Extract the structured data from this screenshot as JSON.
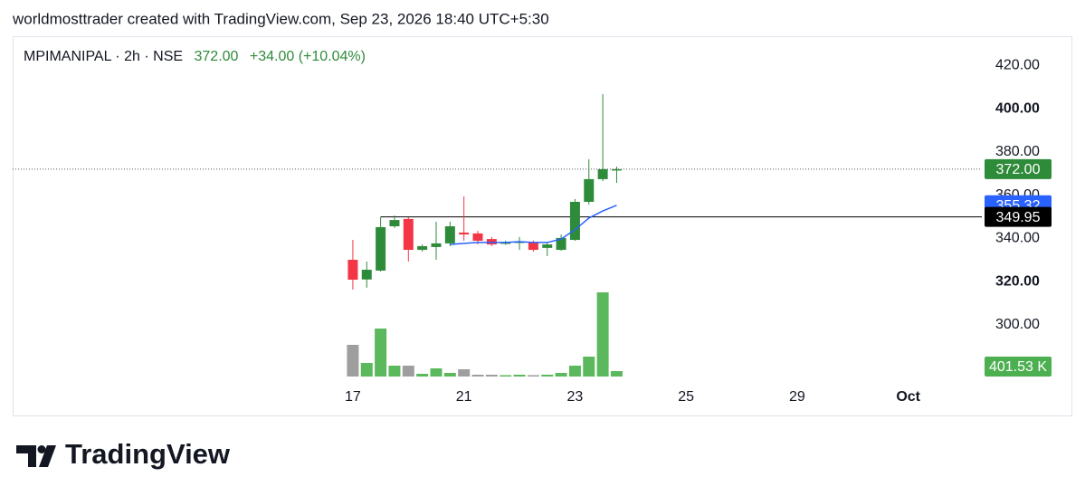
{
  "header": "worldmosttrader created with TradingView.com, Sep 23, 2026 18:40 UTC+5:30",
  "footer": "TradingView",
  "chart_data": {
    "type": "candlestick",
    "symbol": "MPIMANIPAL · 2h · NSE",
    "last_price": "372.00",
    "change": "+34.00 (+10.04%)",
    "up_color": "#2e8b3a",
    "down_color": "#f23645",
    "open": [
      330.1,
      321.0,
      325.1,
      345.6,
      349.0,
      334.7,
      336.0,
      337.7,
      342.7,
      342.3,
      339.7,
      337.7,
      338.0,
      338.1,
      335.6,
      334.7,
      339.3,
      356.9,
      367.4,
      372.0
    ],
    "high": [
      339.3,
      329.3,
      349.8,
      350.6,
      349.8,
      337.2,
      347.7,
      347.7,
      359.4,
      343.5,
      340.6,
      339.0,
      340.6,
      339.0,
      338.5,
      341.8,
      358.2,
      376.6,
      406.7,
      373.2
    ],
    "low": [
      316.3,
      317.2,
      324.7,
      344.8,
      329.3,
      333.9,
      330.1,
      336.4,
      338.9,
      337.2,
      336.4,
      337.0,
      334.7,
      333.9,
      331.8,
      334.3,
      338.9,
      355.6,
      366.5,
      365.7
    ],
    "close": [
      320.9,
      325.5,
      345.2,
      348.5,
      334.7,
      336.4,
      337.7,
      345.6,
      341.8,
      338.9,
      337.2,
      338.1,
      338.5,
      334.7,
      337.2,
      340.2,
      356.9,
      367.4,
      372.0,
      372.0
    ],
    "close_last_label": "372.00",
    "volume": {
      "up_color": "#5cb85c",
      "down_color": "#9e9e9e",
      "label_color": "#4caf50",
      "values": [
        2341500,
        1003500,
        3545700,
        802800,
        802800,
        200700,
        602100,
        267600,
        535200,
        133800,
        133800,
        100350,
        133800,
        100350,
        133800,
        267600,
        802800,
        1471800,
        6221700,
        401530
      ],
      "value_labels": [
        null,
        null,
        null,
        null,
        null,
        null,
        null,
        null,
        null,
        null,
        null,
        null,
        null,
        null,
        null,
        null,
        null,
        null,
        null,
        "401.53 K"
      ],
      "ylim": [
        0,
        25150000
      ]
    },
    "ma": {
      "color": "#2962ff",
      "values": [
        null,
        null,
        null,
        null,
        null,
        null,
        null,
        337.2,
        337.7,
        338.1,
        338.1,
        338.1,
        338.5,
        338.1,
        338.1,
        339.7,
        344.0,
        349.4,
        352.7,
        355.32
      ]
    },
    "hline": {
      "value": 349.95,
      "color": "#000000"
    },
    "xlim": [
      -24.5,
      45.3
    ],
    "xticks": [
      {
        "value": 0,
        "label": "17"
      },
      {
        "value": 8,
        "label": "21"
      },
      {
        "value": 16,
        "label": "23"
      },
      {
        "value": 24,
        "label": "25"
      },
      {
        "value": 32,
        "label": "29"
      },
      {
        "value": 40,
        "label": "Oct"
      }
    ],
    "ylim": [
      257.7,
      433.5
    ],
    "yticks": [
      {
        "value": 300,
        "label": "300.00"
      },
      {
        "value": 320,
        "label": "320.00"
      },
      {
        "value": 340,
        "label": "340.00"
      },
      {
        "value": 360,
        "label": "360.00"
      },
      {
        "value": 380,
        "label": "380.00"
      },
      {
        "value": 400,
        "label": "400.00"
      },
      {
        "value": 420,
        "label": "420.00"
      }
    ]
  }
}
